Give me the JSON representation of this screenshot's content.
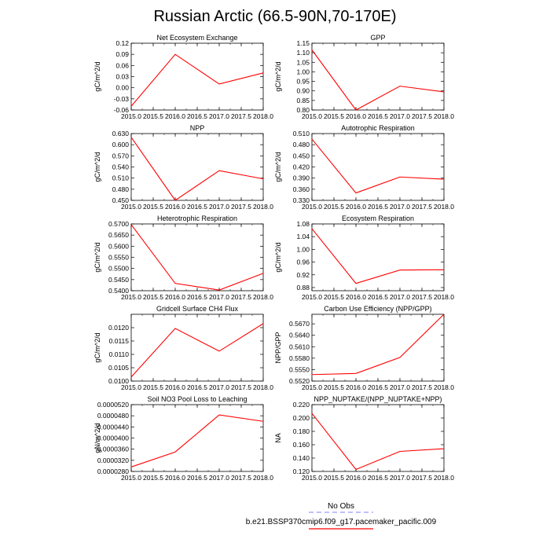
{
  "figure": {
    "title": "Russian Arctic (66.5-90N,70-170E)"
  },
  "colors": {
    "model_line": "#ff0000",
    "obs_line": "#9999ff",
    "axis": "#000000"
  },
  "legend": {
    "obs_label": "No Obs",
    "model_label": "b.e21.BSSP370cmip6.f09_g17.pacemaker_pacific.009"
  },
  "chart_data": [
    {
      "type": "line",
      "title": "Net Ecosystem Exchange",
      "ylabel": "gC/m^2/d",
      "x": [
        2015.0,
        2016.0,
        2017.0,
        2018.0
      ],
      "values": [
        -0.05,
        0.09,
        0.01,
        0.04
      ],
      "xlim": [
        2015.0,
        2018.0
      ],
      "ylim": [
        -0.06,
        0.12
      ],
      "xticks": [
        "2015.0",
        "2015.5",
        "2016.0",
        "2016.5",
        "2017.0",
        "2017.5",
        "2018.0"
      ],
      "yticks": [
        "-0.06",
        "-0.03",
        "0.00",
        "0.03",
        "0.06",
        "0.09",
        "0.12"
      ]
    },
    {
      "type": "line",
      "title": "GPP",
      "ylabel": "gC/m^2/d",
      "x": [
        2015.0,
        2016.0,
        2017.0,
        2018.0
      ],
      "values": [
        1.115,
        0.8,
        0.925,
        0.895
      ],
      "xlim": [
        2015.0,
        2018.0
      ],
      "ylim": [
        0.8,
        1.15
      ],
      "xticks": [
        "2015.0",
        "2015.5",
        "2016.0",
        "2016.5",
        "2017.0",
        "2017.5",
        "2018.0"
      ],
      "yticks": [
        "0.80",
        "0.85",
        "0.90",
        "0.95",
        "1.00",
        "1.05",
        "1.10",
        "1.15"
      ]
    },
    {
      "type": "line",
      "title": "NPP",
      "ylabel": "gC/m^2/d",
      "x": [
        2015.0,
        2016.0,
        2017.0,
        2018.0
      ],
      "values": [
        0.62,
        0.45,
        0.53,
        0.508
      ],
      "xlim": [
        2015.0,
        2018.0
      ],
      "ylim": [
        0.45,
        0.63
      ],
      "xticks": [
        "2015.0",
        "2015.5",
        "2016.0",
        "2016.5",
        "2017.0",
        "2017.5",
        "2018.0"
      ],
      "yticks": [
        "0.450",
        "0.480",
        "0.510",
        "0.540",
        "0.570",
        "0.600",
        "0.630"
      ]
    },
    {
      "type": "line",
      "title": "Autotrophic Respiration",
      "ylabel": "gC/m^2/d",
      "x": [
        2015.0,
        2016.0,
        2017.0,
        2018.0
      ],
      "values": [
        0.495,
        0.35,
        0.393,
        0.387
      ],
      "xlim": [
        2015.0,
        2018.0
      ],
      "ylim": [
        0.33,
        0.51
      ],
      "xticks": [
        "2015.0",
        "2015.5",
        "2016.0",
        "2016.5",
        "2017.0",
        "2017.5",
        "2018.0"
      ],
      "yticks": [
        "0.330",
        "0.360",
        "0.390",
        "0.420",
        "0.450",
        "0.480",
        "0.510"
      ]
    },
    {
      "type": "line",
      "title": "Heterotrophic Respiration",
      "ylabel": "gC/m^2/d",
      "x": [
        2015.0,
        2016.0,
        2017.0,
        2018.0
      ],
      "values": [
        0.5697,
        0.5433,
        0.5403,
        0.5478
      ],
      "xlim": [
        2015.0,
        2018.0
      ],
      "ylim": [
        0.54,
        0.57
      ],
      "xticks": [
        "2015.0",
        "2015.5",
        "2016.0",
        "2016.5",
        "2017.0",
        "2017.5",
        "2018.0"
      ],
      "yticks": [
        "0.5400",
        "0.5450",
        "0.5500",
        "0.5550",
        "0.5600",
        "0.5650",
        "0.5700"
      ]
    },
    {
      "type": "line",
      "title": "Ecosystem Respiration",
      "ylabel": "gC/m^2/d",
      "x": [
        2015.0,
        2016.0,
        2017.0,
        2018.0
      ],
      "values": [
        1.065,
        0.893,
        0.935,
        0.936
      ],
      "xlim": [
        2015.0,
        2018.0
      ],
      "ylim": [
        0.87,
        1.08
      ],
      "xticks": [
        "2015.0",
        "2015.5",
        "2016.0",
        "2016.5",
        "2017.0",
        "2017.5",
        "2018.0"
      ],
      "yticks": [
        "0.88",
        "0.92",
        "0.96",
        "1.00",
        "1.04",
        "1.08"
      ]
    },
    {
      "type": "line",
      "title": "Gridcell Surface CH4 Flux",
      "ylabel": "gC/m^2/d",
      "x": [
        2015.0,
        2016.0,
        2017.0,
        2018.0
      ],
      "values": [
        0.01015,
        0.01197,
        0.01112,
        0.01215
      ],
      "xlim": [
        2015.0,
        2018.0
      ],
      "ylim": [
        0.01,
        0.0125
      ],
      "xticks": [
        "2015.0",
        "2015.5",
        "2016.0",
        "2016.5",
        "2017.0",
        "2017.5",
        "2018.0"
      ],
      "yticks": [
        "0.0100",
        "0.0105",
        "0.0110",
        "0.0115",
        "0.0120"
      ]
    },
    {
      "type": "line",
      "title": "Carbon Use Efficiency (NPP/GPP)",
      "ylabel": "NPP/GPP",
      "x": [
        2015.0,
        2016.0,
        2017.0,
        2018.0
      ],
      "values": [
        0.5537,
        0.554,
        0.5582,
        0.5695
      ],
      "xlim": [
        2015.0,
        2018.0
      ],
      "ylim": [
        0.552,
        0.5695
      ],
      "xticks": [
        "2015.0",
        "2015.5",
        "2016.0",
        "2016.5",
        "2017.0",
        "2017.5",
        "2018.0"
      ],
      "yticks": [
        "0.5520",
        "0.5550",
        "0.5580",
        "0.5610",
        "0.5640",
        "0.5670"
      ]
    },
    {
      "type": "line",
      "title": "Soil NO3 Pool Loss to Leaching",
      "ylabel": "gN/m^2/d",
      "x": [
        2015.0,
        2016.0,
        2017.0,
        2018.0
      ],
      "values": [
        2.96e-05,
        3.5e-05,
        4.83e-05,
        4.6e-05
      ],
      "xlim": [
        2015.0,
        2018.0
      ],
      "ylim": [
        2.8e-05,
        5.2e-05
      ],
      "xticks": [
        "2015.0",
        "2015.5",
        "2016.0",
        "2016.5",
        "2017.0",
        "2017.5",
        "2018.0"
      ],
      "yticks": [
        "0.0000280",
        "0.0000320",
        "0.0000360",
        "0.0000400",
        "0.0000440",
        "0.0000480",
        "0.0000520"
      ]
    },
    {
      "type": "line",
      "title": "NPP_NUPTAKE/(NPP_NUPTAKE+NPP)",
      "ylabel": "NA",
      "x": [
        2015.0,
        2016.0,
        2017.0,
        2018.0
      ],
      "values": [
        0.207,
        0.123,
        0.15,
        0.154
      ],
      "xlim": [
        2015.0,
        2018.0
      ],
      "ylim": [
        0.12,
        0.22
      ],
      "xticks": [
        "2015.0",
        "2015.5",
        "2016.0",
        "2016.5",
        "2017.0",
        "2017.5",
        "2018.0"
      ],
      "yticks": [
        "0.120",
        "0.140",
        "0.160",
        "0.180",
        "0.200",
        "0.220"
      ]
    }
  ]
}
